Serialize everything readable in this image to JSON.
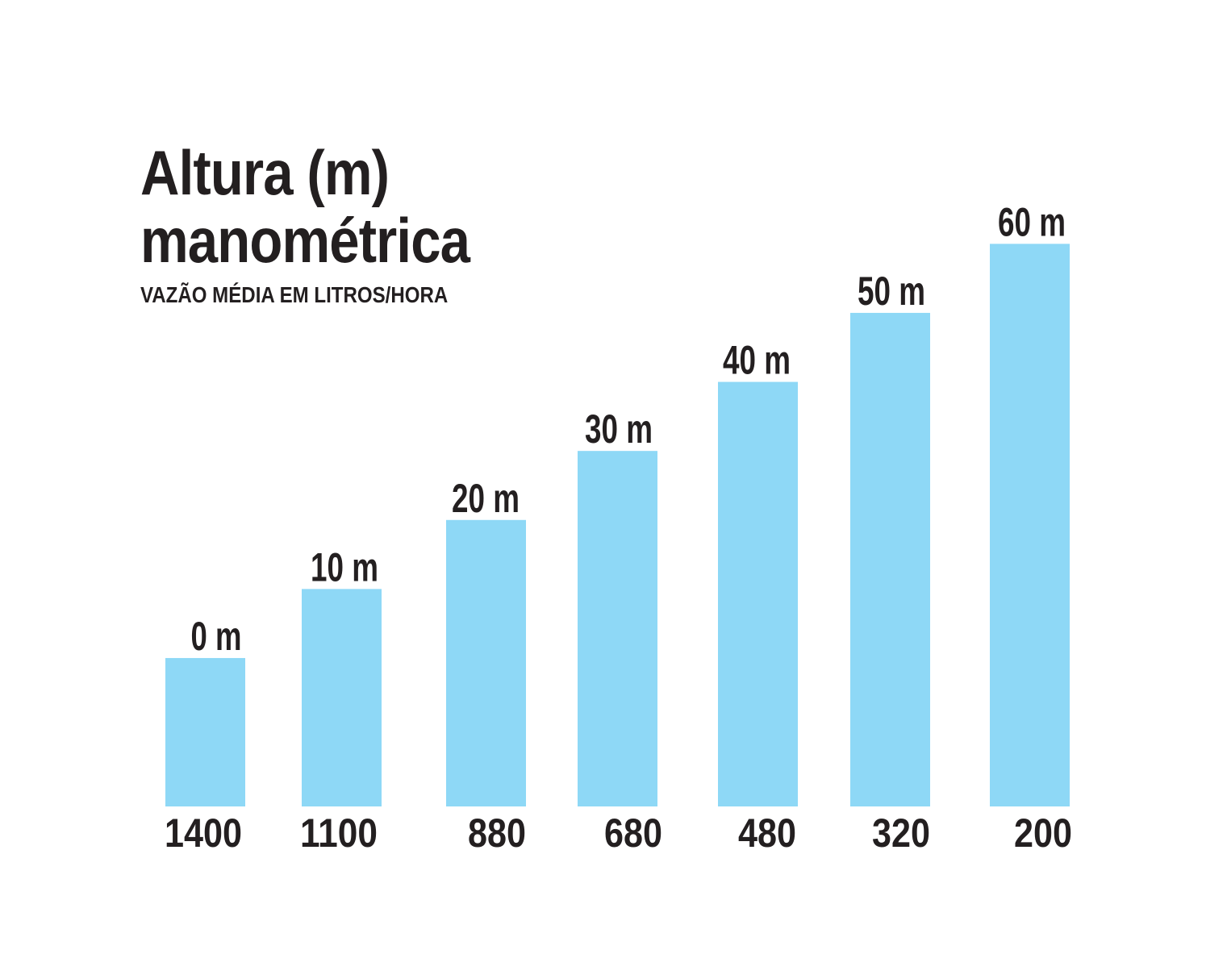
{
  "chart_data": {
    "type": "bar",
    "title_lines": [
      "Altura (m)",
      "manométrica"
    ],
    "subtitle": "VAZÃO MÉDIA EM LITROS/HORA",
    "categories": [
      "1400",
      "1100",
      "880",
      "680",
      "480",
      "320",
      "200"
    ],
    "values": [
      0,
      10,
      20,
      30,
      40,
      50,
      60
    ],
    "data_labels": [
      "0 m",
      "10 m",
      "20 m",
      "30 m",
      "40 m",
      "50 m",
      "60 m"
    ],
    "ylim": [
      -21.5,
      60
    ],
    "bar_color": "#8ed8f6",
    "text_color": "#231f20",
    "grid": false,
    "legend": "none"
  }
}
